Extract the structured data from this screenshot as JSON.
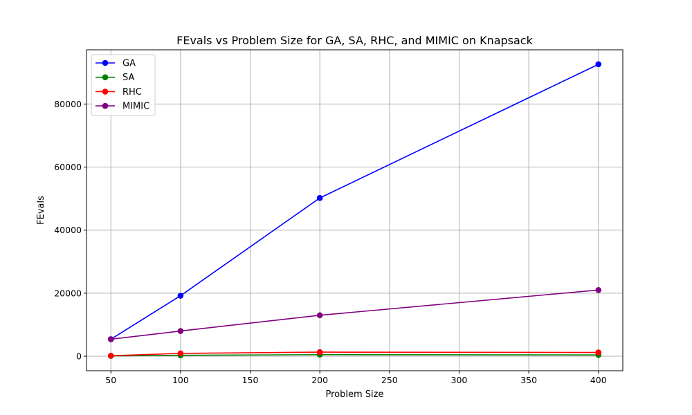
{
  "chart_data": {
    "type": "line",
    "title": "FEvals vs Problem Size for GA, SA, RHC, and MIMIC on Knapsack",
    "xlabel": "Problem Size",
    "ylabel": "FEvals",
    "x": [
      50,
      100,
      200,
      400
    ],
    "xlim": [
      32.5,
      417.5
    ],
    "ylim": [
      -4600,
      97200
    ],
    "xticks": [
      50,
      100,
      150,
      200,
      250,
      300,
      350,
      400
    ],
    "yticks": [
      0,
      20000,
      40000,
      60000,
      80000
    ],
    "grid": true,
    "legend_position": "top-left",
    "series": [
      {
        "name": "GA",
        "color": "#0000ff",
        "values": [
          5400,
          19200,
          50200,
          92600
        ]
      },
      {
        "name": "SA",
        "color": "#008000",
        "values": [
          100,
          300,
          500,
          400
        ]
      },
      {
        "name": "RHC",
        "color": "#ff0000",
        "values": [
          150,
          900,
          1300,
          1200
        ]
      },
      {
        "name": "MIMIC",
        "color": "#800080",
        "values": [
          5400,
          8000,
          13000,
          21000
        ]
      }
    ]
  }
}
